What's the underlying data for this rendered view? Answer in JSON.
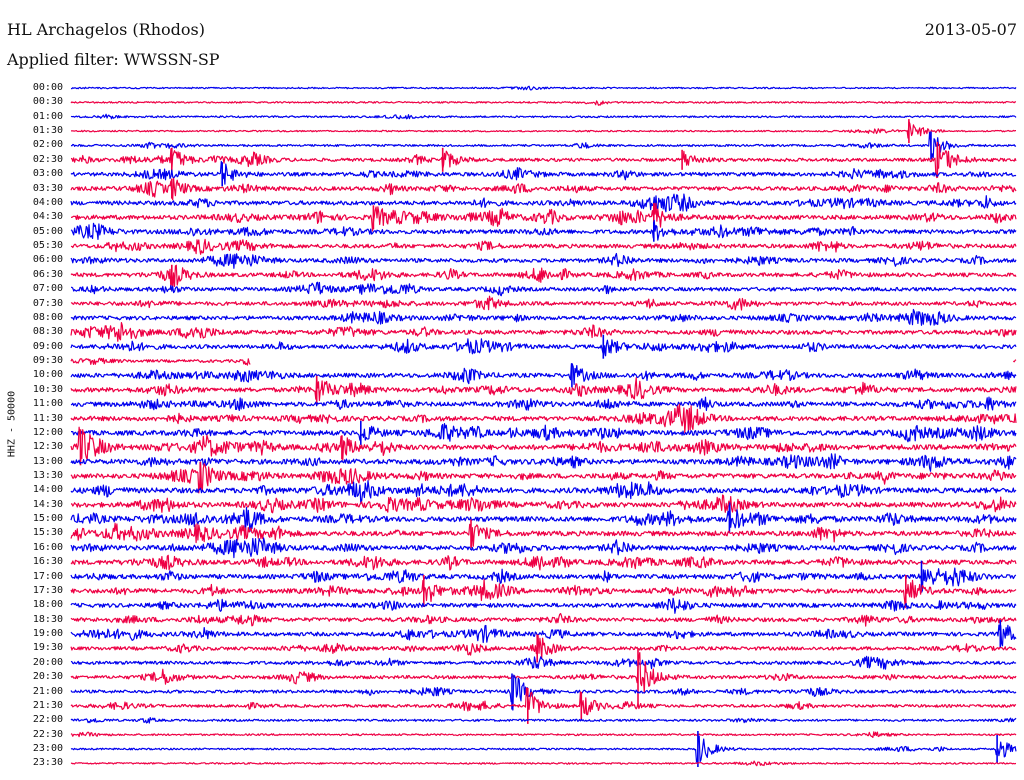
{
  "header": {
    "station": "HL Archagelos (Rhodos)",
    "date": "2013-05-07",
    "filter": "Applied filter: WWSSN-SP"
  },
  "chart_data": {
    "type": "line",
    "chart_kind": "helicorder",
    "title": "HL Archagelos (Rhodos)",
    "ylabel": "HHZ - 50000",
    "xlabel": "",
    "grid": false,
    "legend": "none",
    "row_interval_minutes": 30,
    "colors": [
      "#0000ee",
      "#ee0044"
    ],
    "time_labels": [
      "00:00",
      "00:30",
      "01:00",
      "01:30",
      "02:00",
      "02:30",
      "03:00",
      "03:30",
      "04:00",
      "04:30",
      "05:00",
      "05:30",
      "06:00",
      "06:30",
      "07:00",
      "07:30",
      "08:00",
      "08:30",
      "09:00",
      "09:30",
      "10:00",
      "10:30",
      "11:00",
      "11:30",
      "12:00",
      "12:30",
      "13:00",
      "13:30",
      "14:00",
      "14:30",
      "15:00",
      "15:30",
      "16:00",
      "16:30",
      "17:00",
      "17:30",
      "18:00",
      "18:30",
      "19:00",
      "19:30",
      "20:00",
      "20:30",
      "21:00",
      "21:30",
      "22:00",
      "22:30",
      "23:00",
      "23:30"
    ],
    "activity_level": [
      0.05,
      0.08,
      0.12,
      0.06,
      0.2,
      0.45,
      0.55,
      0.6,
      0.65,
      0.7,
      0.65,
      0.6,
      0.6,
      0.6,
      0.55,
      0.55,
      0.6,
      0.65,
      0.6,
      0.35,
      0.7,
      0.7,
      0.7,
      0.75,
      0.8,
      0.85,
      0.8,
      0.8,
      0.85,
      0.8,
      0.85,
      0.8,
      0.75,
      0.75,
      0.7,
      0.7,
      0.65,
      0.6,
      0.6,
      0.5,
      0.45,
      0.45,
      0.4,
      0.35,
      0.2,
      0.12,
      0.1,
      0.08
    ],
    "events": [
      {
        "row": 5,
        "minute": 11.8,
        "amplitude": 12
      },
      {
        "row": 5,
        "minute": 19.4,
        "amplitude": 10
      },
      {
        "row": 5,
        "minute": 27.5,
        "amplitude": 18
      },
      {
        "row": 4,
        "minute": 27.3,
        "amplitude": 14
      },
      {
        "row": 5,
        "minute": 3.2,
        "amplitude": 12
      },
      {
        "row": 3,
        "minute": 26.6,
        "amplitude": 12
      },
      {
        "row": 6,
        "minute": 4.8,
        "amplitude": 12
      },
      {
        "row": 7,
        "minute": 3.2,
        "amplitude": 10
      },
      {
        "row": 9,
        "minute": 18.5,
        "amplitude": 14
      },
      {
        "row": 9,
        "minute": 9.6,
        "amplitude": 12
      },
      {
        "row": 10,
        "minute": 18.5,
        "amplitude": 10
      },
      {
        "row": 13,
        "minute": 3.2,
        "amplitude": 10
      },
      {
        "row": 18,
        "minute": 16.9,
        "amplitude": 12
      },
      {
        "row": 20,
        "minute": 15.9,
        "amplitude": 12
      },
      {
        "row": 21,
        "minute": 7.8,
        "amplitude": 14
      },
      {
        "row": 24,
        "minute": 9.2,
        "amplitude": 12
      },
      {
        "row": 25,
        "minute": 8.6,
        "amplitude": 12
      },
      {
        "row": 25,
        "minute": 0.3,
        "amplitude": 18
      },
      {
        "row": 27,
        "minute": 4.1,
        "amplitude": 14
      },
      {
        "row": 30,
        "minute": 20.9,
        "amplitude": 14
      },
      {
        "row": 31,
        "minute": 12.7,
        "amplitude": 14
      },
      {
        "row": 34,
        "minute": 27.0,
        "amplitude": 16
      },
      {
        "row": 35,
        "minute": 11.2,
        "amplitude": 16
      },
      {
        "row": 35,
        "minute": 26.5,
        "amplitude": 16
      },
      {
        "row": 38,
        "minute": 29.5,
        "amplitude": 14
      },
      {
        "row": 39,
        "minute": 14.8,
        "amplitude": 14
      },
      {
        "row": 41,
        "minute": 18.0,
        "amplitude": 28
      },
      {
        "row": 42,
        "minute": 14.0,
        "amplitude": 18
      },
      {
        "row": 43,
        "minute": 14.5,
        "amplitude": 18
      },
      {
        "row": 43,
        "minute": 16.2,
        "amplitude": 14
      },
      {
        "row": 46,
        "minute": 19.9,
        "amplitude": 18
      },
      {
        "row": 46,
        "minute": 29.4,
        "amplitude": 14
      }
    ],
    "gaps": [
      {
        "row": 19,
        "start_minute": 5.7,
        "end_minute": 29.9
      }
    ]
  }
}
